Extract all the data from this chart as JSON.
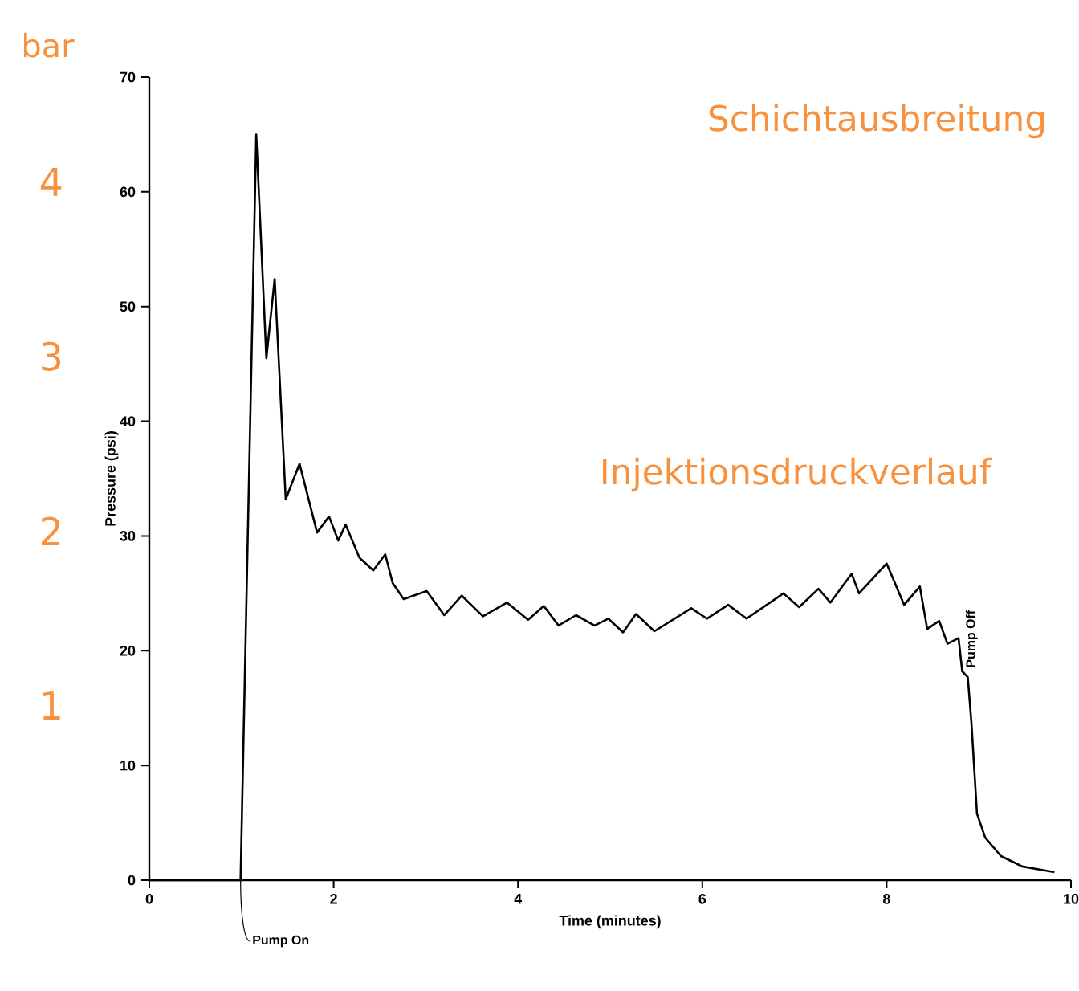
{
  "chart_data": {
    "type": "line",
    "xlabel": "Time (minutes)",
    "ylabel": "Pressure (psi)",
    "y2label": "bar",
    "xlim": [
      0,
      10
    ],
    "xticks": [
      0,
      2,
      4,
      6,
      8,
      10
    ],
    "ylim": [
      0,
      70
    ],
    "yticks": [
      0,
      10,
      20,
      30,
      40,
      50,
      60,
      70
    ],
    "y2lim": [
      0,
      4.6
    ],
    "y2ticks": [
      1,
      2,
      3,
      4
    ],
    "marker": "none",
    "line_style": "solid",
    "annotations": [
      "Schichtausbreitung",
      "Injektionsdruckverlauf",
      {
        "text": "Pump On",
        "x": 0.99,
        "y": 0
      },
      {
        "text": "Pump Off",
        "x": 8.82,
        "y": 18.2
      }
    ],
    "series": [
      {
        "color": "#000000",
        "x": [
          0,
          0.99,
          1.16,
          1.27,
          1.36,
          1.48,
          1.63,
          1.82,
          1.95,
          2.05,
          2.13,
          2.28,
          2.43,
          2.56,
          2.64,
          2.76,
          3.01,
          3.2,
          3.39,
          3.62,
          3.88,
          4.11,
          4.28,
          4.44,
          4.63,
          4.83,
          4.98,
          5.14,
          5.28,
          5.48,
          5.88,
          6.05,
          6.28,
          6.48,
          6.88,
          7.05,
          7.26,
          7.39,
          7.62,
          7.7,
          8.0,
          8.19,
          8.36,
          8.44,
          8.57,
          8.66,
          8.78,
          8.82,
          8.88,
          8.92,
          8.98,
          9.07,
          9.24,
          9.47,
          9.82
        ],
        "values": [
          0,
          0,
          65,
          45.5,
          52.4,
          33.2,
          36.3,
          30.3,
          31.7,
          29.6,
          31.0,
          28.1,
          27.0,
          28.4,
          25.9,
          24.5,
          25.2,
          23.1,
          24.8,
          23.0,
          24.2,
          22.7,
          23.9,
          22.2,
          23.1,
          22.2,
          22.8,
          21.6,
          23.2,
          21.7,
          23.7,
          22.8,
          24.0,
          22.8,
          25.0,
          23.8,
          25.4,
          24.2,
          26.7,
          25.0,
          27.6,
          24.0,
          25.6,
          21.9,
          22.6,
          20.6,
          21.1,
          18.2,
          17.7,
          13.7,
          5.8,
          3.7,
          2.1,
          1.2,
          0.7
        ]
      }
    ]
  }
}
